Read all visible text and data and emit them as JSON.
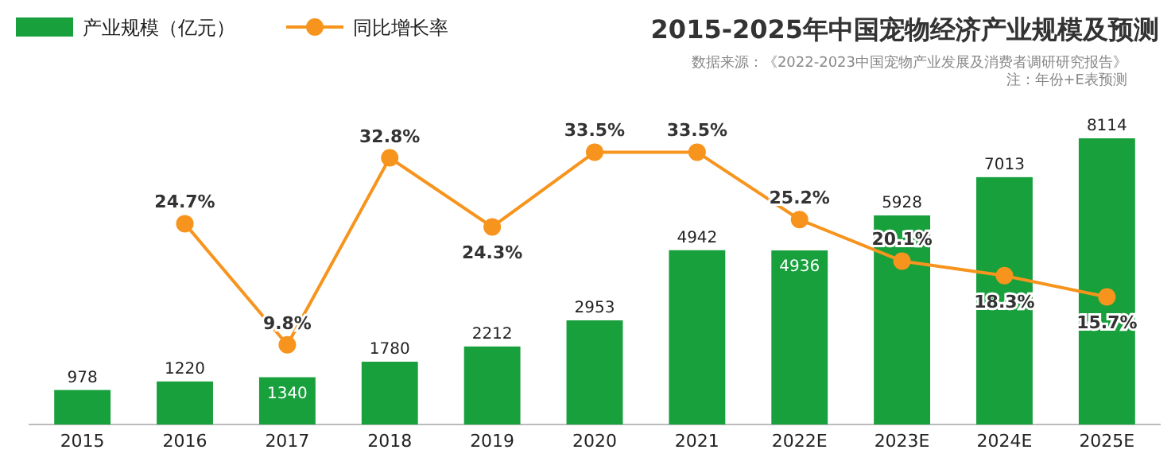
{
  "chart_data": {
    "type": "bar",
    "title": "2015-2025年中国宠物经济产业规模及预测",
    "annotations": [
      "数据来源：《2022-2023中国宠物产业发展及消费者调研研究报告》",
      "注：年份+E表预测"
    ],
    "categories": [
      "2015",
      "2016",
      "2017",
      "2018",
      "2019",
      "2020",
      "2021",
      "2022E",
      "2023E",
      "2024E",
      "2025E"
    ],
    "series": [
      {
        "name": "产业规模（亿元）",
        "color": "#18a03c",
        "values": [
          978,
          1220,
          1340,
          1780,
          2212,
          2953,
          4942,
          4936,
          5928,
          7013,
          8114
        ]
      },
      {
        "name": "同比增长率",
        "type": "line",
        "axis": "y2",
        "color": "#f7941d",
        "values": [
          null,
          24.7,
          9.8,
          32.8,
          24.3,
          33.5,
          33.5,
          25.2,
          20.1,
          18.3,
          15.7
        ],
        "value_labels": [
          null,
          "24.7%",
          "9.8%",
          "32.8%",
          "24.3%",
          "33.5%",
          "33.5%",
          "25.2%",
          "20.1%",
          "18.3%",
          "15.7%"
        ]
      }
    ],
    "data_labels": true,
    "legend": "top left",
    "marker": "circle",
    "tick_labels": "x"
  }
}
